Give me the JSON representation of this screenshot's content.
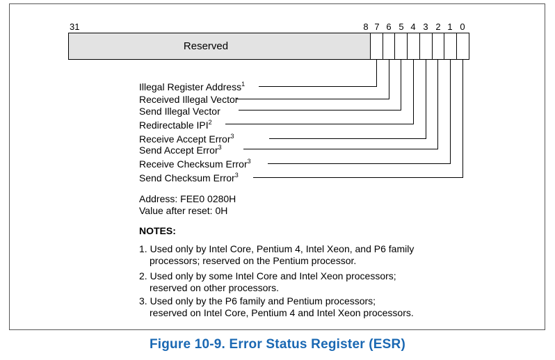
{
  "register": {
    "bit_labels": [
      "31",
      "8",
      "7",
      "6",
      "5",
      "4",
      "3",
      "2",
      "1",
      "0"
    ],
    "reserved_label": "Reserved"
  },
  "fields": [
    {
      "label": "Illegal Register Address",
      "sup": "1",
      "bit": 7
    },
    {
      "label": "Received Illegal Vector",
      "sup": "",
      "bit": 6
    },
    {
      "label": "Send Illegal Vector",
      "sup": "",
      "bit": 5
    },
    {
      "label": "Redirectable IPI",
      "sup": "2",
      "bit": 4
    },
    {
      "label": "Receive Accept Error",
      "sup": "3",
      "bit": 3
    },
    {
      "label": "Send Accept Error",
      "sup": "3",
      "bit": 2
    },
    {
      "label": "Receive Checksum Error",
      "sup": "3",
      "bit": 1
    },
    {
      "label": "Send Checksum Error",
      "sup": "3",
      "bit": 0
    }
  ],
  "address": "Address: FEE0 0280H",
  "reset_value": "Value after reset: 0H",
  "notes": {
    "title": "NOTES:",
    "items": [
      {
        "num": "1.",
        "line1": "Used only by Intel Core, Pentium 4, Intel Xeon, and P6 family",
        "line2": "processors; reserved on the Pentium processor."
      },
      {
        "num": "2.",
        "line1": "Used only by some Intel Core and Intel Xeon processors;",
        "line2": "reserved on other processors."
      },
      {
        "num": "3.",
        "line1": "Used only by the P6 family and Pentium processors;",
        "line2": "reserved on Intel Core, Pentium 4 and Intel Xeon processors."
      }
    ]
  },
  "caption": "Figure 10-9.  Error Status Register (ESR)",
  "colors": {
    "reserved_fill": "#e3e3e3",
    "caption": "#1a68b3",
    "line": "#000000"
  }
}
